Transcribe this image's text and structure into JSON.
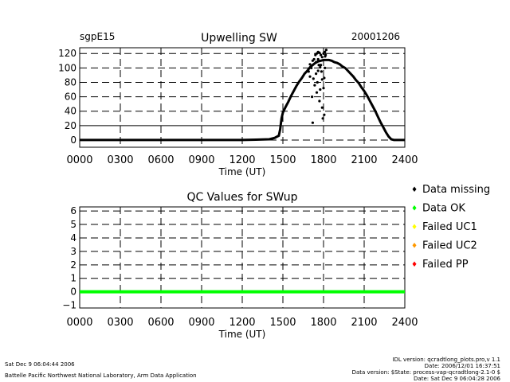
{
  "header": {
    "site": "sgpE15",
    "title": "Upwelling SW",
    "date": "20001206"
  },
  "chart_data": [
    {
      "type": "scatter",
      "title": "Upwelling SW",
      "xlabel": "Time (UT)",
      "ylabel": "",
      "xlim": [
        0,
        2400
      ],
      "ylim": [
        -10,
        128
      ],
      "x_ticks": [
        "0000",
        "0300",
        "0600",
        "0900",
        "1200",
        "1500",
        "1800",
        "2100",
        "2400"
      ],
      "y_ticks": [
        "0",
        "20",
        "40",
        "60",
        "80",
        "100",
        "120"
      ],
      "grid": true,
      "series": [
        {
          "x": [
            0,
            200,
            400,
            600,
            800,
            1000,
            1200,
            1300,
            1400,
            1440,
            1470,
            1480,
            1490,
            1500,
            1510,
            1520,
            1540,
            1560,
            1580,
            1600,
            1620,
            1640,
            1660,
            1680,
            1700,
            1720,
            1740,
            1760,
            1780,
            1800,
            1820,
            1840,
            1860,
            1880,
            1900,
            1920,
            1940,
            1960,
            1980,
            2000,
            2020,
            2040,
            2060,
            2080,
            2100,
            2120,
            2140,
            2160,
            2180,
            2200,
            2220,
            2240,
            2260,
            2280,
            2300,
            2320,
            2340,
            2360,
            2380,
            2400
          ],
          "y": [
            0,
            0,
            0,
            0,
            0,
            0,
            0,
            0.5,
            1,
            3,
            6,
            15,
            30,
            38,
            42,
            46,
            53,
            61,
            68,
            75,
            81,
            86,
            92,
            96,
            101,
            104,
            107,
            109,
            110,
            111,
            111,
            111,
            110,
            108,
            107,
            105,
            102,
            100,
            96,
            92,
            88,
            83,
            79,
            73,
            68,
            62,
            55,
            48,
            41,
            33,
            25,
            18,
            11,
            5,
            1,
            0,
            0,
            0,
            0,
            0
          ]
        },
        {
          "name": "scatter",
          "x": [
            1690,
            1700,
            1710,
            1720,
            1725,
            1730,
            1740,
            1745,
            1750,
            1755,
            1760,
            1765,
            1770,
            1775,
            1780,
            1785,
            1790,
            1795,
            1800,
            1805,
            1810,
            1815,
            1820,
            1700,
            1715,
            1735,
            1750,
            1760,
            1770,
            1780,
            1790,
            1800,
            1810,
            1760,
            1790,
            1805,
            1720,
            1745,
            1775,
            1812
          ],
          "y": [
            95,
            105,
            100,
            110,
            85,
            112,
            118,
            92,
            120,
            80,
            122,
            104,
            121,
            70,
            118,
            95,
            115,
            30,
            120,
            86,
            122,
            118,
            125,
            88,
            60,
            76,
            66,
            96,
            54,
            104,
            45,
            72,
            100,
            112,
            84,
            35,
            24,
            108,
            101,
            116
          ]
        }
      ]
    },
    {
      "type": "line",
      "title": "QC Values for SWup",
      "xlabel": "Time (UT)",
      "ylabel": "",
      "xlim": [
        0,
        2400
      ],
      "ylim": [
        -1.2,
        6.3
      ],
      "x_ticks": [
        "0000",
        "0300",
        "0600",
        "0900",
        "1200",
        "1500",
        "1800",
        "2100",
        "2400"
      ],
      "y_ticks": [
        "−1",
        "0",
        "1",
        "2",
        "3",
        "4",
        "5",
        "6"
      ],
      "grid": true,
      "legend_placement": "right",
      "legend": [
        {
          "label": "Data missing",
          "color": "#000000"
        },
        {
          "label": "Data OK",
          "color": "#00ff00"
        },
        {
          "label": "Failed UC1",
          "color": "#ffff00"
        },
        {
          "label": "Failed UC2",
          "color": "#ff9900"
        },
        {
          "label": "Failed PP",
          "color": "#ff0000"
        }
      ],
      "series": [
        {
          "x": [
            0,
            2400
          ],
          "y": [
            0,
            0
          ],
          "color": "#00ff00"
        }
      ]
    }
  ],
  "footer": {
    "timestamp": "Sat Dec  9 06:04:44 2006",
    "lab": "Battelle Pacific Northwest National Laboratory, Arm Data Application",
    "idl_version": "IDL version: qcradtlong_plots.pro,v 1.1",
    "date_line": "Date: 2006/12/01 16:37:51",
    "data_version": "Data version: $State: process-vap-qcradtlong-2.1-0 $",
    "date_sat": "Date: Sat Dec  9 06:04:28 2006"
  }
}
